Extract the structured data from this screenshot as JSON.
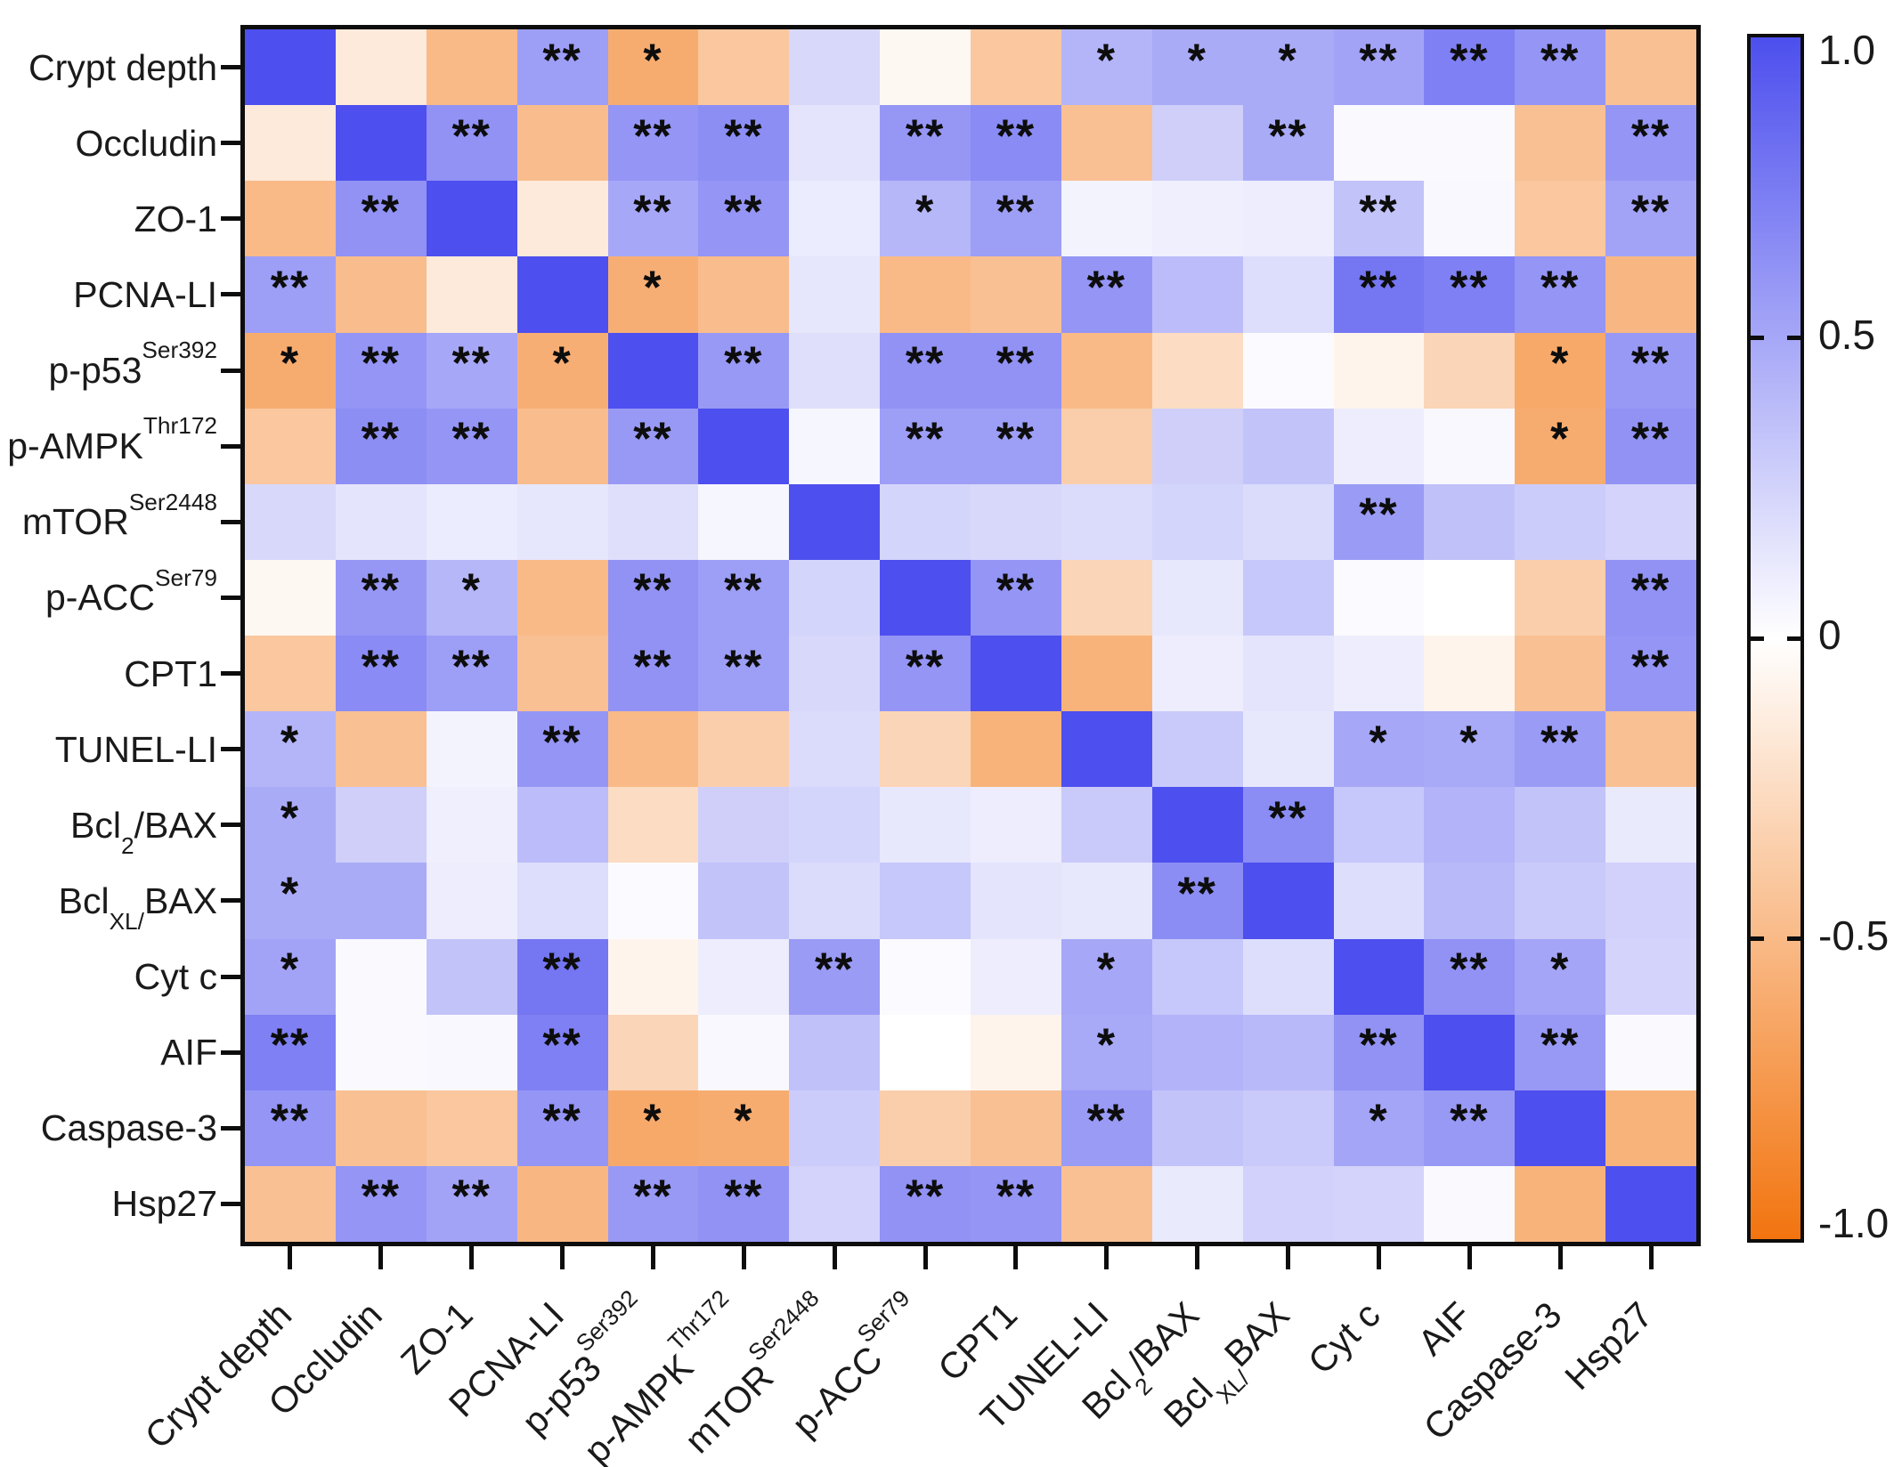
{
  "chart_data": {
    "type": "heatmap",
    "title": "",
    "description": "Pearson correlation matrix heatmap with significance stars",
    "grid_on": false,
    "legend_position": "right-colorbar",
    "value_range": [
      -1.0,
      1.0
    ],
    "colors": {
      "positive_max": "#4d4fee",
      "zero": "#ffffff",
      "negative_max": "#f2740f",
      "border": "#0d0d0d",
      "star": "#0d0d0d"
    },
    "variables": [
      [
        "Crypt depth"
      ],
      [
        "Occludin"
      ],
      [
        "ZO-1"
      ],
      [
        "PCNA-LI"
      ],
      [
        "p-p53",
        {
          "sup": "Ser392"
        }
      ],
      [
        "p-AMPK",
        {
          "sup": "Thr172"
        }
      ],
      [
        "mTOR",
        {
          "sup": "Ser2448"
        }
      ],
      [
        "p-ACC",
        {
          "sup": "Ser79"
        }
      ],
      [
        "CPT1"
      ],
      [
        "TUNEL-LI"
      ],
      [
        "Bcl",
        {
          "sub": "2"
        },
        "/BAX"
      ],
      [
        "Bcl",
        {
          "sub": "XL/"
        },
        "BAX"
      ],
      [
        "Cyt c"
      ],
      [
        "AIF"
      ],
      [
        "Caspase-3"
      ],
      [
        "Hsp27"
      ]
    ],
    "matrix": [
      [
        1.0,
        -0.15,
        -0.5,
        0.55,
        -0.6,
        -0.4,
        0.22,
        -0.05,
        -0.4,
        0.42,
        0.48,
        0.48,
        0.52,
        0.72,
        0.6,
        -0.45
      ],
      [
        -0.15,
        1.0,
        0.62,
        -0.48,
        0.6,
        0.64,
        0.15,
        0.59,
        0.66,
        -0.45,
        0.27,
        0.48,
        0.03,
        0.03,
        -0.45,
        0.6
      ],
      [
        -0.5,
        0.62,
        1.0,
        -0.15,
        0.5,
        0.6,
        0.11,
        0.41,
        0.55,
        0.07,
        0.09,
        0.1,
        0.34,
        0.04,
        -0.4,
        0.52
      ],
      [
        0.55,
        -0.48,
        -0.15,
        1.0,
        -0.58,
        -0.48,
        0.14,
        -0.5,
        -0.45,
        0.6,
        0.38,
        0.19,
        0.78,
        0.72,
        0.6,
        -0.52
      ],
      [
        -0.6,
        0.6,
        0.5,
        -0.58,
        1.0,
        0.58,
        0.18,
        0.62,
        0.62,
        -0.5,
        -0.25,
        0.02,
        -0.08,
        -0.3,
        -0.62,
        0.58
      ],
      [
        -0.4,
        0.64,
        0.6,
        -0.48,
        0.58,
        1.0,
        0.05,
        0.55,
        0.55,
        -0.35,
        0.27,
        0.34,
        0.1,
        0.04,
        -0.6,
        0.62
      ],
      [
        0.22,
        0.15,
        0.11,
        0.14,
        0.18,
        0.05,
        1.0,
        0.24,
        0.22,
        0.2,
        0.24,
        0.2,
        0.57,
        0.35,
        0.29,
        0.25
      ],
      [
        -0.05,
        0.59,
        0.41,
        -0.5,
        0.62,
        0.55,
        0.24,
        1.0,
        0.6,
        -0.3,
        0.13,
        0.32,
        0.02,
        0.0,
        -0.35,
        0.62
      ],
      [
        -0.4,
        0.66,
        0.55,
        -0.45,
        0.62,
        0.55,
        0.22,
        0.6,
        1.0,
        -0.55,
        0.1,
        0.15,
        0.1,
        -0.08,
        -0.45,
        0.6
      ],
      [
        0.42,
        -0.45,
        0.07,
        0.6,
        -0.5,
        -0.35,
        0.2,
        -0.3,
        -0.55,
        1.0,
        0.3,
        0.13,
        0.5,
        0.49,
        0.57,
        -0.45
      ],
      [
        0.48,
        0.27,
        0.09,
        0.38,
        -0.25,
        0.27,
        0.24,
        0.13,
        0.1,
        0.3,
        1.0,
        0.65,
        0.32,
        0.43,
        0.34,
        0.12
      ],
      [
        0.48,
        0.48,
        0.1,
        0.19,
        0.02,
        0.34,
        0.2,
        0.32,
        0.15,
        0.13,
        0.65,
        1.0,
        0.19,
        0.4,
        0.3,
        0.26
      ],
      [
        0.52,
        0.03,
        0.34,
        0.78,
        -0.08,
        0.1,
        0.57,
        0.02,
        0.1,
        0.5,
        0.32,
        0.19,
        1.0,
        0.62,
        0.51,
        0.25
      ],
      [
        0.72,
        0.03,
        0.04,
        0.72,
        -0.3,
        0.04,
        0.35,
        0.0,
        -0.08,
        0.49,
        0.43,
        0.4,
        0.62,
        1.0,
        0.58,
        0.03
      ],
      [
        0.6,
        -0.45,
        -0.4,
        0.6,
        -0.62,
        -0.6,
        0.29,
        -0.35,
        -0.45,
        0.57,
        0.34,
        0.3,
        0.51,
        0.58,
        1.0,
        -0.55
      ],
      [
        -0.45,
        0.6,
        0.52,
        -0.52,
        0.58,
        0.62,
        0.25,
        0.62,
        0.6,
        -0.45,
        0.12,
        0.26,
        0.25,
        0.03,
        -0.55,
        1.0
      ]
    ],
    "stars": [
      [
        "",
        "",
        "",
        "**",
        "*",
        "",
        "",
        "",
        "",
        "*",
        "*",
        "*",
        "**",
        "**",
        "**",
        ""
      ],
      [
        "",
        "",
        "**",
        "",
        "**",
        "**",
        "",
        "**",
        "**",
        "",
        "",
        "**",
        "",
        "",
        "",
        "**"
      ],
      [
        "",
        "**",
        "",
        "",
        "**",
        "**",
        "",
        "*",
        "**",
        "",
        "",
        "",
        "**",
        "",
        "",
        "**"
      ],
      [
        "**",
        "",
        "",
        "",
        "*",
        "",
        "",
        "",
        "",
        "**",
        "",
        "",
        "**",
        "**",
        "**",
        ""
      ],
      [
        "*",
        "**",
        "**",
        "*",
        "",
        "**",
        "",
        "**",
        "**",
        "",
        "",
        "",
        "",
        "",
        "*",
        "**"
      ],
      [
        "",
        "**",
        "**",
        "",
        "**",
        "",
        "",
        "**",
        "**",
        "",
        "",
        "",
        "",
        "",
        "*",
        "**"
      ],
      [
        "",
        "",
        "",
        "",
        "",
        "",
        "",
        "",
        "",
        "",
        "",
        "",
        "**",
        "",
        "",
        ""
      ],
      [
        "",
        "**",
        "*",
        "",
        "**",
        "**",
        "",
        "",
        "**",
        "",
        "",
        "",
        "",
        "",
        "",
        "**"
      ],
      [
        "",
        "**",
        "**",
        "",
        "**",
        "**",
        "",
        "**",
        "",
        "",
        "",
        "",
        "",
        "",
        "",
        "**"
      ],
      [
        "*",
        "",
        "",
        "**",
        "",
        "",
        "",
        "",
        "",
        "",
        "",
        "",
        "*",
        "*",
        "**",
        ""
      ],
      [
        "*",
        "",
        "",
        "",
        "",
        "",
        "",
        "",
        "",
        "",
        "",
        "**",
        "",
        "",
        "",
        ""
      ],
      [
        "*",
        "",
        "",
        "",
        "",
        "",
        "",
        "",
        "",
        "",
        "**",
        "",
        "",
        "",
        "",
        ""
      ],
      [
        "*",
        "",
        "",
        "**",
        "",
        "",
        "**",
        "",
        "",
        "*",
        "",
        "",
        "",
        "**",
        "*",
        ""
      ],
      [
        "**",
        "",
        "",
        "**",
        "",
        "",
        "",
        "",
        "",
        "*",
        "",
        "",
        "**",
        "",
        "**",
        ""
      ],
      [
        "**",
        "",
        "",
        "**",
        "*",
        "*",
        "",
        "",
        "",
        "**",
        "",
        "",
        "*",
        "**",
        "",
        ""
      ],
      [
        "",
        "**",
        "**",
        "",
        "**",
        "**",
        "",
        "**",
        "**",
        "",
        "",
        "",
        "",
        "",
        "",
        ""
      ]
    ],
    "colorbar": {
      "ticks": [
        {
          "label": "1.0",
          "value": 1.0
        },
        {
          "label": "0.5",
          "value": 0.5
        },
        {
          "label": "0",
          "value": 0.0
        },
        {
          "label": "-0.5",
          "value": -0.5
        },
        {
          "label": "-1.0",
          "value": -1.0
        }
      ],
      "notch_values": [
        0.5,
        0.0,
        -0.5
      ]
    }
  }
}
